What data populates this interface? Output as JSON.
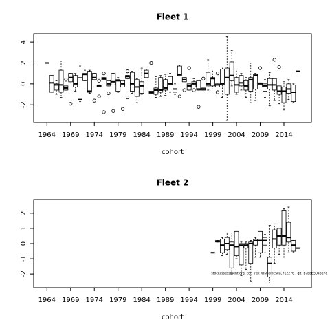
{
  "chart_data": [
    {
      "type": "boxplot",
      "title": "Fleet 1",
      "xlabel": "cohort",
      "xlim": [
        1961.2,
        2019.8
      ],
      "xticks": [
        1964,
        1969,
        1974,
        1979,
        1984,
        1989,
        1994,
        1999,
        2004,
        2009,
        2014
      ],
      "ylim": [
        -3.7,
        4.8
      ],
      "yticks": [
        -2,
        0,
        2,
        4
      ],
      "color": "#000000",
      "boxes": [
        {
          "x": 1964,
          "min": 2,
          "q1": 2,
          "median": 2,
          "q3": 2,
          "max": 2,
          "outliers": []
        },
        {
          "x": 1965,
          "min": -0.8,
          "q1": -0.8,
          "median": 0.1,
          "q3": 0.8,
          "max": 0.8,
          "outliers": []
        },
        {
          "x": 1966,
          "min": -1.0,
          "q1": -0.6,
          "median": -0.1,
          "q3": 0,
          "max": 0.3,
          "outliers": []
        },
        {
          "x": 1967,
          "min": -1.3,
          "q1": -0.8,
          "median": -0.1,
          "q3": 1.3,
          "max": 2.2,
          "outliers": []
        },
        {
          "x": 1968,
          "min": -0.6,
          "q1": -0.6,
          "median": -0.4,
          "q3": -0.2,
          "max": -0.2,
          "outliers": [
            0.4
          ]
        },
        {
          "x": 1969,
          "min": 0.2,
          "q1": 0.2,
          "median": 0.6,
          "q3": 1.0,
          "max": 1.0,
          "outliers": [
            -1.9
          ]
        },
        {
          "x": 1970,
          "min": -0.7,
          "q1": -0.3,
          "median": 0,
          "q3": 0.8,
          "max": 1.0,
          "outliers": []
        },
        {
          "x": 1971,
          "min": -1.7,
          "q1": -1.5,
          "median": -1.5,
          "q3": 0.6,
          "max": 1.7,
          "outliers": []
        },
        {
          "x": 1972,
          "min": 0.3,
          "q1": 0.3,
          "median": 0.9,
          "q3": 1.0,
          "max": 1.3,
          "outliers": []
        },
        {
          "x": 1973,
          "min": -0.9,
          "q1": -0.8,
          "median": -0.7,
          "q3": 1.2,
          "max": 1.3,
          "outliers": []
        },
        {
          "x": 1974,
          "min": 0.4,
          "q1": 0.4,
          "median": 0.6,
          "q3": 1.0,
          "max": 1.0,
          "outliers": [
            -1.6
          ]
        },
        {
          "x": 1975,
          "min": -0.3,
          "q1": -0.3,
          "median": -0.2,
          "q3": -0.1,
          "max": -0.1,
          "outliers": [
            0.3,
            -1.2
          ]
        },
        {
          "x": 1976,
          "min": 0.4,
          "q1": 0.4,
          "median": 0.5,
          "q3": 0.6,
          "max": 0.6,
          "outliers": [
            1.0,
            -2.7
          ]
        },
        {
          "x": 1977,
          "min": -0.2,
          "q1": -0.2,
          "median": 0,
          "q3": 0.3,
          "max": 0.3,
          "outliers": [
            -0.9
          ]
        },
        {
          "x": 1978,
          "min": -0.1,
          "q1": -0.1,
          "median": 0.2,
          "q3": 1.0,
          "max": 1.0,
          "outliers": [
            -2.6
          ]
        },
        {
          "x": 1979,
          "min": -0.8,
          "q1": -0.7,
          "median": 0.3,
          "q3": 0.4,
          "max": 0.6,
          "outliers": []
        },
        {
          "x": 1980,
          "min": -0.3,
          "q1": -0.3,
          "median": 0,
          "q3": 0.3,
          "max": 0.3,
          "outliers": [
            -2.4
          ]
        },
        {
          "x": 1981,
          "min": 0.5,
          "q1": 0.5,
          "median": 0.7,
          "q3": 0.8,
          "max": 0.8,
          "outliers": [
            1.2,
            -1.3
          ]
        },
        {
          "x": 1982,
          "min": -0.9,
          "q1": -0.7,
          "median": 0,
          "q3": 1.1,
          "max": 1.2,
          "outliers": []
        },
        {
          "x": 1983,
          "min": -1.8,
          "q1": -1.2,
          "median": -0.3,
          "q3": 0.4,
          "max": 0.5,
          "outliers": []
        },
        {
          "x": 1984,
          "min": -1.0,
          "q1": -0.9,
          "median": -0.2,
          "q3": 0.2,
          "max": 1.5,
          "outliers": []
        },
        {
          "x": 1985,
          "min": 0.6,
          "q1": 0.6,
          "median": 1.0,
          "q3": 1.3,
          "max": 1.6,
          "outliers": []
        },
        {
          "x": 1986,
          "min": -0.9,
          "q1": -0.9,
          "median": -0.8,
          "q3": -0.7,
          "max": -0.7,
          "outliers": [
            2.0
          ]
        },
        {
          "x": 1987,
          "min": -1.3,
          "q1": -1.0,
          "median": -0.6,
          "q3": -0.4,
          "max": 0.7,
          "outliers": []
        },
        {
          "x": 1988,
          "min": -1.2,
          "q1": -0.8,
          "median": -0.6,
          "q3": 0.6,
          "max": 0.8,
          "outliers": []
        },
        {
          "x": 1989,
          "min": -1.1,
          "q1": -0.6,
          "median": -0.4,
          "q3": 0.4,
          "max": 0.9,
          "outliers": []
        },
        {
          "x": 1990,
          "min": -0.8,
          "q1": -0.1,
          "median": 0,
          "q3": 0.7,
          "max": 1.0,
          "outliers": []
        },
        {
          "x": 1991,
          "min": -1.0,
          "q1": -0.8,
          "median": -0.5,
          "q3": -0.3,
          "max": 0,
          "outliers": []
        },
        {
          "x": 1992,
          "min": 0.8,
          "q1": 0.8,
          "median": 0.9,
          "q3": 1.7,
          "max": 2.0,
          "outliers": [
            -1.2
          ]
        },
        {
          "x": 1993,
          "min": 0.2,
          "q1": 0.2,
          "median": 0.4,
          "q3": 0.6,
          "max": 0.6,
          "outliers": [
            -0.6
          ]
        },
        {
          "x": 1994,
          "min": -0.6,
          "q1": -0.6,
          "median": -0.2,
          "q3": 0,
          "max": 0,
          "outliers": [
            1.5
          ]
        },
        {
          "x": 1995,
          "min": -0.3,
          "q1": -0.3,
          "median": 0,
          "q3": 0.2,
          "max": 0.5,
          "outliers": [
            -0.6
          ]
        },
        {
          "x": 1996,
          "min": -0.6,
          "q1": -0.6,
          "median": -0.5,
          "q3": 0.3,
          "max": 0.3,
          "outliers": [
            -2.2
          ]
        },
        {
          "x": 1997,
          "min": -0.6,
          "q1": -0.6,
          "median": -0.5,
          "q3": -0.4,
          "max": -0.4,
          "outliers": [
            0.5
          ]
        },
        {
          "x": 1998,
          "min": -0.6,
          "q1": -0.2,
          "median": 0,
          "q3": 1.1,
          "max": 2.3,
          "outliers": []
        },
        {
          "x": 1999,
          "min": -0.5,
          "q1": -0.2,
          "median": 0.5,
          "q3": 0.6,
          "max": 1.4,
          "outliers": []
        },
        {
          "x": 2000,
          "min": -0.3,
          "q1": -0.3,
          "median": -0.1,
          "q3": 0,
          "max": 0,
          "outliers": [
            1.0,
            -0.8
          ]
        },
        {
          "x": 2001,
          "min": -1.3,
          "q1": -0.1,
          "median": 0,
          "q3": 1.4,
          "max": 1.6,
          "outliers": []
        },
        {
          "x": 2002,
          "min": -3.5,
          "q1": -1.0,
          "median": 0.6,
          "q3": 1.5,
          "max": 4.5,
          "outliers": []
        },
        {
          "x": 2003,
          "min": -0.2,
          "q1": 0.3,
          "median": 0.8,
          "q3": 2.1,
          "max": 3.2,
          "outliers": []
        },
        {
          "x": 2004,
          "min": -1.0,
          "q1": -0.8,
          "median": -0.1,
          "q3": 0.6,
          "max": 1.4,
          "outliers": []
        },
        {
          "x": 2005,
          "min": -0.6,
          "q1": -0.2,
          "median": 0.1,
          "q3": 0.8,
          "max": 1.0,
          "outliers": []
        },
        {
          "x": 2006,
          "min": -1.3,
          "q1": -0.6,
          "median": -0.2,
          "q3": 0.3,
          "max": 0.6,
          "outliers": []
        },
        {
          "x": 2007,
          "min": -1.8,
          "q1": -0.7,
          "median": 0.4,
          "q3": 0.6,
          "max": 2.0,
          "outliers": []
        },
        {
          "x": 2008,
          "min": -1.6,
          "q1": -0.5,
          "median": 0.8,
          "q3": 0.9,
          "max": 1.0,
          "outliers": []
        },
        {
          "x": 2009,
          "min": -0.3,
          "q1": -0.3,
          "median": 0,
          "q3": 0.1,
          "max": 0.1,
          "outliers": [
            1.5
          ]
        },
        {
          "x": 2010,
          "min": -1.3,
          "q1": -0.7,
          "median": -0.2,
          "q3": 0,
          "max": 0.4,
          "outliers": []
        },
        {
          "x": 2011,
          "min": -2.1,
          "q1": -0.5,
          "median": -0.1,
          "q3": 0.5,
          "max": 1.1,
          "outliers": []
        },
        {
          "x": 2012,
          "min": -1.6,
          "q1": -0.6,
          "median": -0.1,
          "q3": 0.5,
          "max": 0.5,
          "outliers": [
            2.3
          ]
        },
        {
          "x": 2013,
          "min": -1.9,
          "q1": -1.0,
          "median": -0.7,
          "q3": -0.2,
          "max": -0.2,
          "outliers": [
            1.6
          ]
        },
        {
          "x": 2014,
          "min": -2.5,
          "q1": -1.8,
          "median": -0.7,
          "q3": -0.3,
          "max": 0.2,
          "outliers": []
        },
        {
          "x": 2015,
          "min": -1.5,
          "q1": -0.9,
          "median": -0.5,
          "q3": 0,
          "max": 0.4,
          "outliers": []
        },
        {
          "x": 2016,
          "min": -1.8,
          "q1": -1.7,
          "median": -0.8,
          "q3": -0.1,
          "max": 0,
          "outliers": []
        },
        {
          "x": 2017,
          "min": 1.2,
          "q1": 1.2,
          "median": 1.2,
          "q3": 1.2,
          "max": 1.2,
          "outliers": []
        }
      ]
    },
    {
      "type": "boxplot",
      "title": "Fleet 2",
      "xlabel": "cohort",
      "annotation": "stockassessment.org, cod_7ek_WKCelticSea, r12276 , git: b7bbb5048e7c",
      "xlim": [
        1961.2,
        2019.8
      ],
      "xticks": [
        1964,
        1969,
        1974,
        1979,
        1984,
        1989,
        1994,
        1999,
        2004,
        2009,
        2014
      ],
      "ylim": [
        -2.9,
        2.9
      ],
      "yticks": [
        -2,
        -1,
        0,
        1,
        2
      ],
      "color": "#000000",
      "boxes": [
        {
          "x": 1999,
          "min": -0.6,
          "q1": -0.6,
          "median": -0.6,
          "q3": -0.6,
          "max": -0.6,
          "outliers": []
        },
        {
          "x": 2000,
          "min": 0.1,
          "q1": 0.1,
          "median": 0.15,
          "q3": 0.2,
          "max": 0.2,
          "outliers": []
        },
        {
          "x": 2001,
          "min": -0.8,
          "q1": -0.6,
          "median": -0.1,
          "q3": 0.3,
          "max": 0.4,
          "outliers": []
        },
        {
          "x": 2002,
          "min": -0.7,
          "q1": -0.4,
          "median": 0,
          "q3": 0.4,
          "max": 0.7,
          "outliers": []
        },
        {
          "x": 2003,
          "min": -2.0,
          "q1": -1.6,
          "median": -0.1,
          "q3": 0.1,
          "max": 0.7,
          "outliers": []
        },
        {
          "x": 2004,
          "min": -1.0,
          "q1": -0.8,
          "median": -0.2,
          "q3": 0.8,
          "max": 0.8,
          "outliers": []
        },
        {
          "x": 2005,
          "min": -2.1,
          "q1": -1.4,
          "median": -0.1,
          "q3": 0,
          "max": 0.1,
          "outliers": []
        },
        {
          "x": 2006,
          "min": -1.7,
          "q1": -0.3,
          "median": -0.1,
          "q3": 0,
          "max": 0.1,
          "outliers": []
        },
        {
          "x": 2007,
          "min": -2.5,
          "q1": -1.3,
          "median": 0,
          "q3": 0.1,
          "max": 0.2,
          "outliers": []
        },
        {
          "x": 2008,
          "min": -0.9,
          "q1": -0.1,
          "median": 0.2,
          "q3": 0.3,
          "max": 0.4,
          "outliers": []
        },
        {
          "x": 2009,
          "min": -0.9,
          "q1": -0.6,
          "median": 0.2,
          "q3": 0.8,
          "max": 0.8,
          "outliers": []
        },
        {
          "x": 2010,
          "min": -0.6,
          "q1": -0.1,
          "median": 0.2,
          "q3": 0.4,
          "max": 0.6,
          "outliers": []
        },
        {
          "x": 2011,
          "min": -2.6,
          "q1": -2.2,
          "median": -1.3,
          "q3": -0.9,
          "max": 1.2,
          "outliers": []
        },
        {
          "x": 2012,
          "min": -1.3,
          "q1": -0.3,
          "median": 0.3,
          "q3": 0.9,
          "max": 1.3,
          "outliers": []
        },
        {
          "x": 2013,
          "min": -0.7,
          "q1": -0.1,
          "median": 0.5,
          "q3": 1.0,
          "max": 1.0,
          "outliers": []
        },
        {
          "x": 2014,
          "min": -0.9,
          "q1": -0.1,
          "median": 0.5,
          "q3": 2.2,
          "max": 2.3,
          "outliers": []
        },
        {
          "x": 2015,
          "min": -0.6,
          "q1": 0.1,
          "median": 0.4,
          "q3": 1.4,
          "max": 2.4,
          "outliers": []
        },
        {
          "x": 2016,
          "min": -0.6,
          "q1": -0.5,
          "median": -0.1,
          "q3": 0.2,
          "max": 0.2,
          "outliers": []
        },
        {
          "x": 2017,
          "min": -0.3,
          "q1": -0.3,
          "median": -0.3,
          "q3": -0.3,
          "max": -0.3,
          "outliers": []
        }
      ]
    }
  ]
}
